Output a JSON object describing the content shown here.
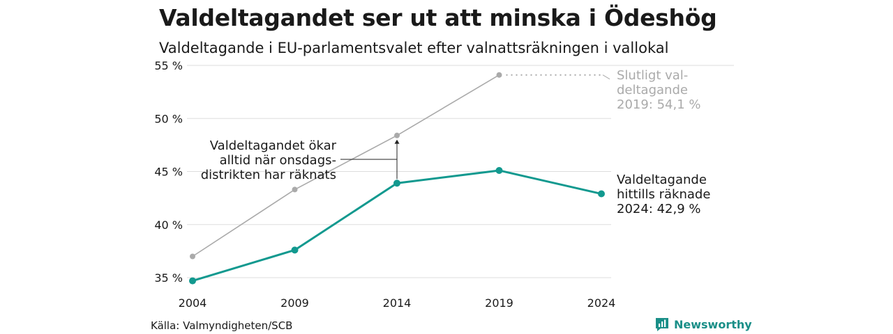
{
  "title": "Valdeltagandet ser ut att minska i Ödeshög",
  "subtitle": "Valdeltagande i EU-parlamentsvalet efter valnattsräkningen i vallokal",
  "source": "Källa: Valmyndigheten/SCB",
  "brand": "Newsworthy",
  "colors": {
    "final": "#aaaaaa",
    "counted": "#12998f",
    "grid": "#dddddd",
    "text": "#1a1a1a"
  },
  "chart_data": {
    "type": "line",
    "x": [
      2004,
      2009,
      2014,
      2019,
      2024
    ],
    "xtick_labels": [
      "2004",
      "2009",
      "2014",
      "2019",
      "2024"
    ],
    "ylim": [
      34,
      55
    ],
    "yticks": [
      35,
      40,
      45,
      50,
      55
    ],
    "ytick_labels": [
      "35 %",
      "40 %",
      "45 %",
      "50 %",
      "55 %"
    ],
    "grid": true,
    "series": [
      {
        "key": "final",
        "color": "#aaaaaa",
        "x": [
          2004,
          2009,
          2014,
          2019
        ],
        "values": [
          37.0,
          43.3,
          48.4,
          54.1
        ]
      },
      {
        "key": "counted",
        "color": "#12998f",
        "x": [
          2004,
          2009,
          2014,
          2019,
          2024
        ],
        "values": [
          34.7,
          37.6,
          43.9,
          45.1,
          42.9
        ]
      }
    ],
    "annotations": {
      "final_label": [
        "Slutligt val-",
        "deltagande",
        "2019: 54,1 %"
      ],
      "counted_label": [
        "Valdeltagande",
        "hittills räknade",
        "2024: 42,9 %"
      ],
      "middle_label": [
        "Valdeltagandet ökar",
        "alltid när onsdags-",
        "distrikten har räknats"
      ]
    }
  }
}
